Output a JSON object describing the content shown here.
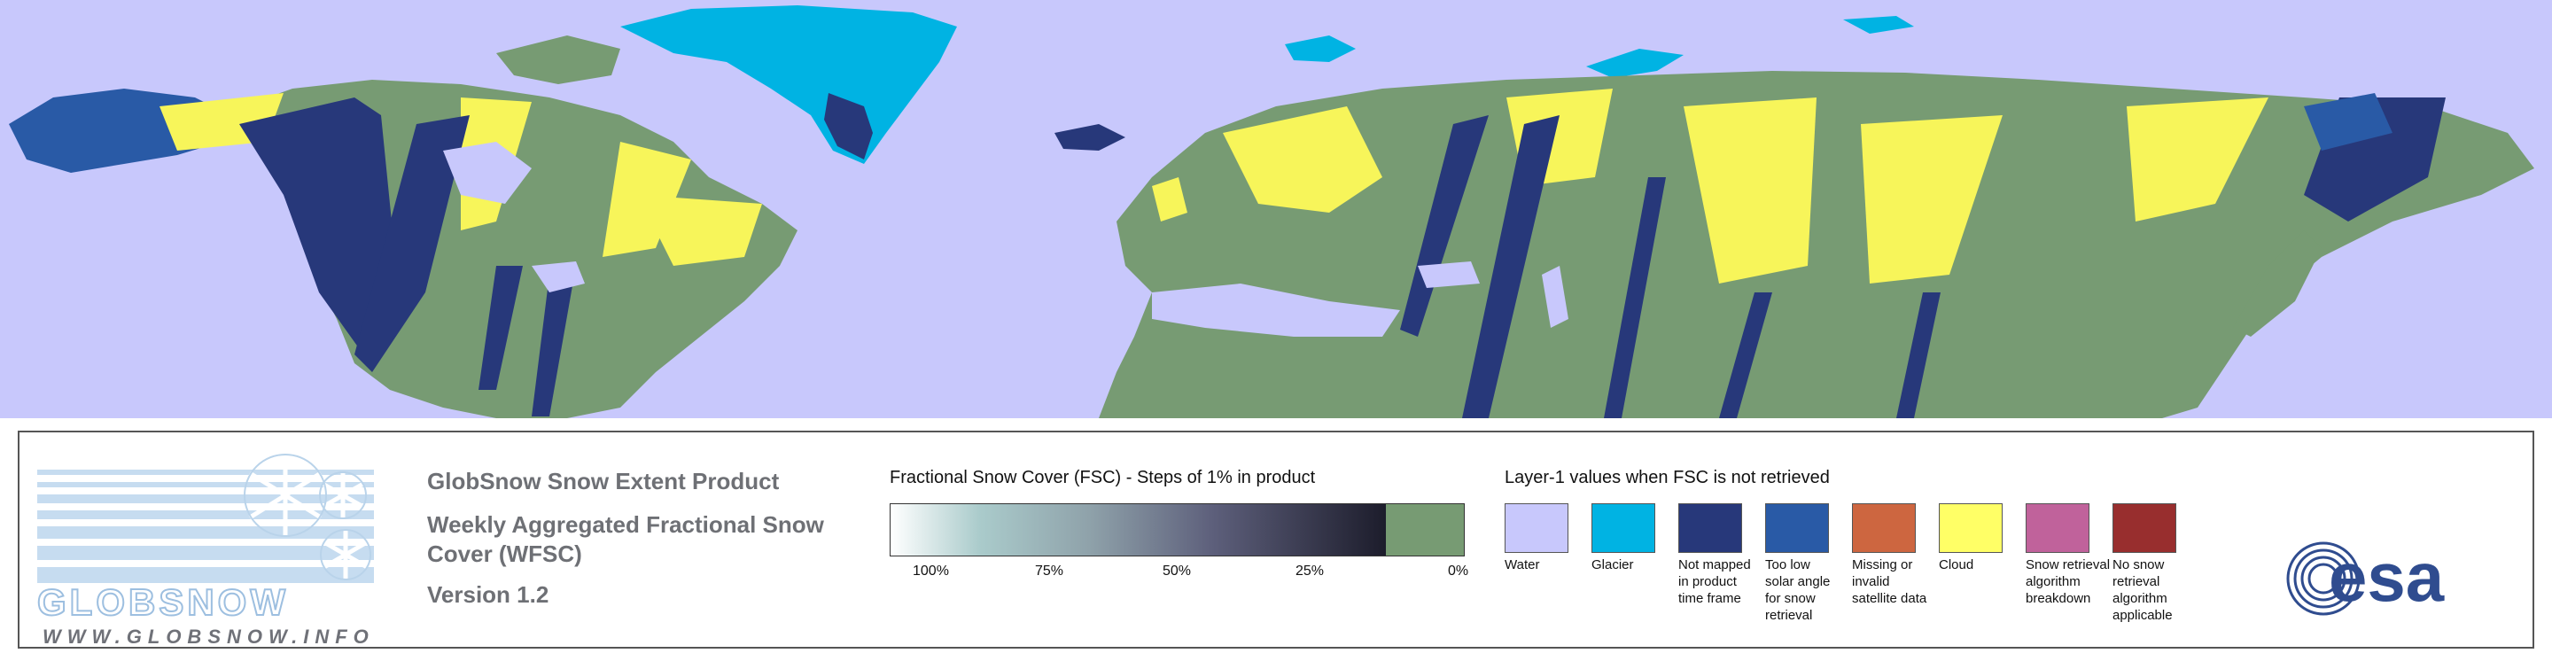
{
  "map": {
    "colors": {
      "water": "#c8c8fc",
      "land_no_snow": "#779b73",
      "snow": "#f7f55a",
      "not_mapped": "#27387a",
      "glacier": "#00b3e3"
    }
  },
  "logo": {
    "wordmark": "GLOBSNOW",
    "url": "WWW.GLOBSNOW.INFO"
  },
  "product": {
    "title": "GlobSnow Snow Extent Product",
    "subtitle": "Weekly Aggregated Fractional Snow Cover (WFSC)",
    "version": "Version 1.2"
  },
  "fsc_scale": {
    "label": "Fractional Snow Cover (FSC) - Steps of 1% in product",
    "ticks": [
      "100%",
      "75%",
      "50%",
      "25%",
      "0%"
    ],
    "zero_color": "#779b73"
  },
  "layer1": {
    "label": "Layer-1 values when FSC is not retrieved",
    "items": [
      {
        "label": "Water",
        "color": "#c8c8fc"
      },
      {
        "label": "Glacier",
        "color": "#00b3e3"
      },
      {
        "label": "Not mapped in product time frame",
        "color": "#27387a"
      },
      {
        "label": "Too low solar angle for snow retrieval",
        "color": "#295aa6"
      },
      {
        "label": "Missing or invalid satellite data",
        "color": "#cd6640"
      },
      {
        "label": "Cloud",
        "color": "#ffff66"
      },
      {
        "label": "Snow retrieval algorithm breakdown",
        "color": "#c0629b"
      },
      {
        "label": "No snow retrieval algorithm applicable",
        "color": "#982e2e"
      }
    ]
  },
  "esa_logo": {
    "text": "esa"
  }
}
